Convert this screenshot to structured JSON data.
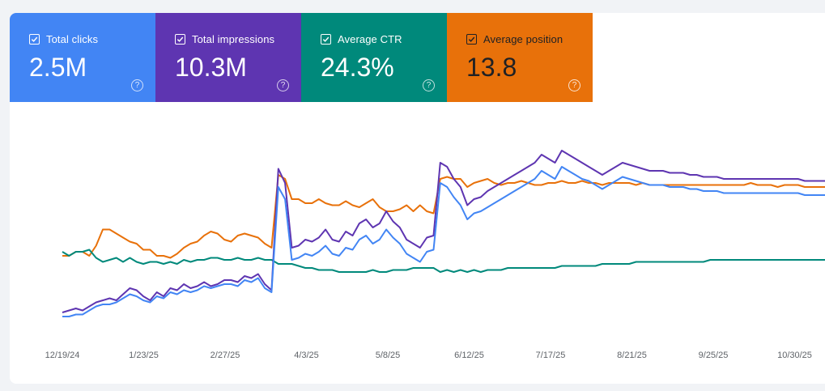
{
  "metrics": [
    {
      "label": "Total clicks",
      "value": "2.5M",
      "color": "#4285f4",
      "checked": true,
      "help_icon": "help-circle-icon"
    },
    {
      "label": "Total impressions",
      "value": "10.3M",
      "color": "#5e35b1",
      "checked": true,
      "help_icon": "help-circle-icon"
    },
    {
      "label": "Average CTR",
      "value": "24.3%",
      "color": "#00897b",
      "checked": true,
      "help_icon": "help-circle-icon"
    },
    {
      "label": "Average position",
      "value": "13.8",
      "color": "#e8710a",
      "checked": true,
      "help_icon": "help-circle-icon",
      "text_color": "#202124"
    }
  ],
  "chart_data": {
    "type": "line",
    "title": "",
    "xlabel": "",
    "ylabel": "",
    "grid": false,
    "legend": "none",
    "x_tick_labels": [
      "12/19/24",
      "1/23/25",
      "2/27/25",
      "4/3/25",
      "5/8/25",
      "6/12/25",
      "7/17/25",
      "8/21/25",
      "9/25/25",
      "10/30/25"
    ],
    "x_start": "2024-12-14",
    "x_end": "2025-11-10",
    "y_range_normalized": [
      0,
      1
    ],
    "series": [
      {
        "metric": "Average position",
        "color": "#e8710a",
        "values_normalized": [
          0.34,
          0.34,
          0.36,
          0.36,
          0.34,
          0.39,
          0.47,
          0.47,
          0.45,
          0.43,
          0.41,
          0.4,
          0.37,
          0.37,
          0.34,
          0.34,
          0.33,
          0.35,
          0.38,
          0.4,
          0.41,
          0.44,
          0.46,
          0.45,
          0.42,
          0.41,
          0.44,
          0.45,
          0.44,
          0.43,
          0.4,
          0.38,
          0.74,
          0.72,
          0.62,
          0.62,
          0.6,
          0.6,
          0.62,
          0.6,
          0.59,
          0.59,
          0.61,
          0.59,
          0.58,
          0.6,
          0.62,
          0.58,
          0.56,
          0.56,
          0.57,
          0.59,
          0.56,
          0.59,
          0.56,
          0.55,
          0.72,
          0.73,
          0.72,
          0.72,
          0.68,
          0.7,
          0.71,
          0.72,
          0.7,
          0.69,
          0.7,
          0.7,
          0.71,
          0.7,
          0.69,
          0.69,
          0.7,
          0.7,
          0.71,
          0.7,
          0.7,
          0.71,
          0.7,
          0.7,
          0.69,
          0.7,
          0.7,
          0.7,
          0.7,
          0.69,
          0.7,
          0.69,
          0.69,
          0.69,
          0.69,
          0.69,
          0.69,
          0.69,
          0.69,
          0.69,
          0.69,
          0.69,
          0.69,
          0.69,
          0.69,
          0.69,
          0.7,
          0.69,
          0.69,
          0.69,
          0.68,
          0.69,
          0.69,
          0.69,
          0.68,
          0.68,
          0.68,
          0.68
        ]
      },
      {
        "metric": "Average CTR",
        "color": "#00897b",
        "values_normalized": [
          0.36,
          0.34,
          0.36,
          0.36,
          0.37,
          0.33,
          0.31,
          0.32,
          0.33,
          0.31,
          0.33,
          0.31,
          0.3,
          0.31,
          0.31,
          0.3,
          0.31,
          0.3,
          0.32,
          0.31,
          0.32,
          0.32,
          0.33,
          0.33,
          0.32,
          0.32,
          0.33,
          0.32,
          0.32,
          0.33,
          0.32,
          0.32,
          0.3,
          0.3,
          0.3,
          0.29,
          0.28,
          0.28,
          0.27,
          0.27,
          0.27,
          0.26,
          0.26,
          0.26,
          0.26,
          0.26,
          0.27,
          0.26,
          0.26,
          0.27,
          0.27,
          0.27,
          0.28,
          0.28,
          0.28,
          0.28,
          0.26,
          0.27,
          0.26,
          0.27,
          0.26,
          0.27,
          0.26,
          0.27,
          0.27,
          0.27,
          0.28,
          0.28,
          0.28,
          0.28,
          0.28,
          0.28,
          0.28,
          0.28,
          0.29,
          0.29,
          0.29,
          0.29,
          0.29,
          0.29,
          0.3,
          0.3,
          0.3,
          0.3,
          0.3,
          0.31,
          0.31,
          0.31,
          0.31,
          0.31,
          0.31,
          0.31,
          0.31,
          0.31,
          0.31,
          0.31,
          0.32,
          0.32,
          0.32,
          0.32,
          0.32,
          0.32,
          0.32,
          0.32,
          0.32,
          0.32,
          0.32,
          0.32,
          0.32,
          0.32,
          0.32,
          0.32,
          0.32,
          0.32
        ]
      },
      {
        "metric": "Total impressions",
        "color": "#5e35b1",
        "values_normalized": [
          0.06,
          0.07,
          0.08,
          0.07,
          0.09,
          0.11,
          0.12,
          0.13,
          0.12,
          0.15,
          0.18,
          0.17,
          0.14,
          0.12,
          0.16,
          0.14,
          0.18,
          0.17,
          0.2,
          0.18,
          0.19,
          0.21,
          0.19,
          0.2,
          0.22,
          0.22,
          0.21,
          0.24,
          0.23,
          0.25,
          0.2,
          0.17,
          0.77,
          0.7,
          0.38,
          0.39,
          0.42,
          0.41,
          0.43,
          0.47,
          0.42,
          0.41,
          0.46,
          0.44,
          0.5,
          0.52,
          0.48,
          0.5,
          0.56,
          0.51,
          0.48,
          0.42,
          0.4,
          0.38,
          0.43,
          0.44,
          0.8,
          0.78,
          0.72,
          0.68,
          0.59,
          0.62,
          0.63,
          0.66,
          0.68,
          0.7,
          0.72,
          0.74,
          0.76,
          0.78,
          0.8,
          0.84,
          0.82,
          0.8,
          0.86,
          0.84,
          0.82,
          0.8,
          0.78,
          0.76,
          0.74,
          0.76,
          0.78,
          0.8,
          0.79,
          0.78,
          0.77,
          0.76,
          0.76,
          0.76,
          0.75,
          0.75,
          0.75,
          0.74,
          0.74,
          0.73,
          0.73,
          0.73,
          0.72,
          0.72,
          0.72,
          0.72,
          0.72,
          0.72,
          0.72,
          0.72,
          0.72,
          0.72,
          0.72,
          0.72,
          0.71,
          0.71,
          0.71,
          0.71
        ]
      },
      {
        "metric": "Total clicks",
        "color": "#4285f4",
        "values_normalized": [
          0.04,
          0.04,
          0.05,
          0.05,
          0.07,
          0.09,
          0.1,
          0.1,
          0.11,
          0.13,
          0.15,
          0.14,
          0.12,
          0.11,
          0.14,
          0.13,
          0.16,
          0.15,
          0.17,
          0.16,
          0.17,
          0.19,
          0.18,
          0.19,
          0.2,
          0.2,
          0.19,
          0.22,
          0.21,
          0.23,
          0.18,
          0.16,
          0.68,
          0.62,
          0.32,
          0.33,
          0.35,
          0.34,
          0.36,
          0.39,
          0.35,
          0.34,
          0.38,
          0.37,
          0.42,
          0.44,
          0.4,
          0.42,
          0.47,
          0.43,
          0.4,
          0.35,
          0.33,
          0.31,
          0.36,
          0.37,
          0.7,
          0.68,
          0.63,
          0.59,
          0.52,
          0.55,
          0.56,
          0.58,
          0.6,
          0.62,
          0.64,
          0.66,
          0.68,
          0.7,
          0.72,
          0.76,
          0.74,
          0.72,
          0.78,
          0.76,
          0.74,
          0.72,
          0.71,
          0.69,
          0.67,
          0.69,
          0.71,
          0.73,
          0.72,
          0.71,
          0.7,
          0.69,
          0.69,
          0.69,
          0.68,
          0.68,
          0.68,
          0.67,
          0.67,
          0.66,
          0.66,
          0.66,
          0.65,
          0.65,
          0.65,
          0.65,
          0.65,
          0.65,
          0.65,
          0.65,
          0.65,
          0.65,
          0.65,
          0.65,
          0.64,
          0.64,
          0.64,
          0.64
        ]
      }
    ]
  }
}
